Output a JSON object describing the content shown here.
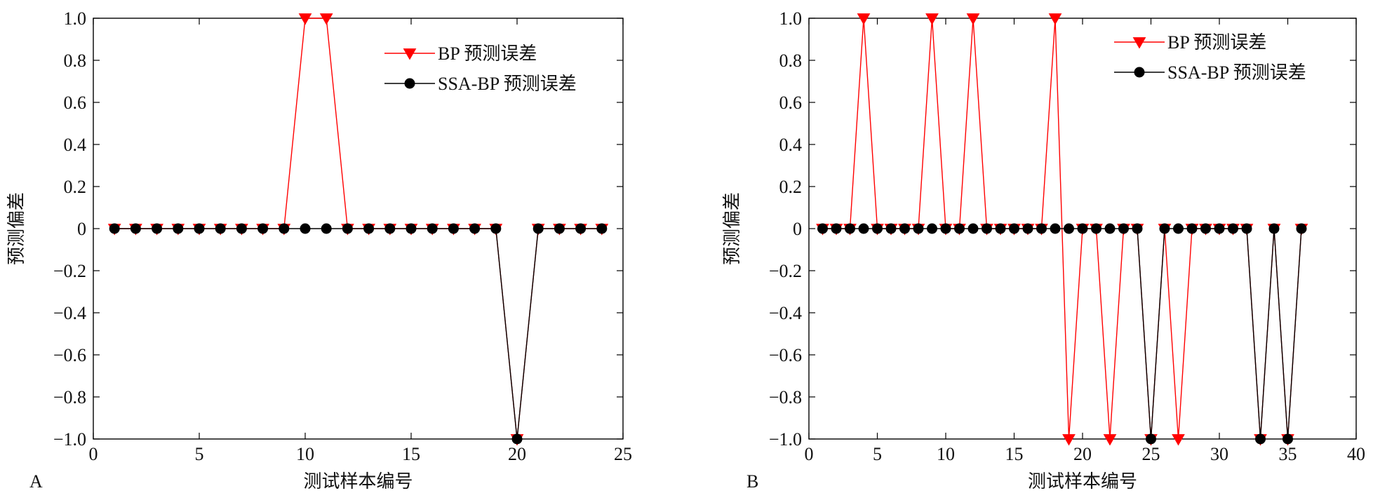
{
  "chart_data": [
    {
      "panel_label": "A",
      "type": "line",
      "xlabel": "测试样本编号",
      "ylabel": "预测偏差",
      "xlim": [
        0,
        25
      ],
      "ylim": [
        -1.0,
        1.0
      ],
      "x_ticks": [
        0,
        5,
        10,
        15,
        20,
        25
      ],
      "y_ticks": [
        -1.0,
        -0.8,
        -0.6,
        -0.4,
        -0.2,
        0,
        0.2,
        0.4,
        0.6,
        0.8,
        1.0
      ],
      "y_tick_labels": [
        "−1.0",
        "−0.8",
        "−0.6",
        "−0.4",
        "−0.2",
        "0",
        "0.2",
        "0.4",
        "0.6",
        "0.8",
        "1.0"
      ],
      "x_tick_labels": [
        "0",
        "5",
        "10",
        "15",
        "20",
        "25"
      ],
      "legend_position": "top-right",
      "grid": false,
      "series": [
        {
          "name": "BP 预测误差",
          "color": "#ff0000",
          "marker": "triangle-down",
          "x": [
            1,
            2,
            3,
            4,
            5,
            6,
            7,
            8,
            9,
            10,
            11,
            12,
            13,
            14,
            15,
            16,
            17,
            18,
            19,
            20,
            21,
            22,
            23,
            24
          ],
          "y": [
            0,
            0,
            0,
            0,
            0,
            0,
            0,
            0,
            0,
            1,
            1,
            0,
            0,
            0,
            0,
            0,
            0,
            0,
            0,
            -1,
            0,
            0,
            0,
            0
          ]
        },
        {
          "name": "SSA-BP 预测误差",
          "color": "#000000",
          "marker": "circle",
          "x": [
            1,
            2,
            3,
            4,
            5,
            6,
            7,
            8,
            9,
            10,
            11,
            12,
            13,
            14,
            15,
            16,
            17,
            18,
            19,
            20,
            21,
            22,
            23,
            24
          ],
          "y": [
            0,
            0,
            0,
            0,
            0,
            0,
            0,
            0,
            0,
            0,
            0,
            0,
            0,
            0,
            0,
            0,
            0,
            0,
            0,
            -1,
            0,
            0,
            0,
            0
          ]
        }
      ]
    },
    {
      "panel_label": "B",
      "type": "line",
      "xlabel": "测试样本编号",
      "ylabel": "预测偏差",
      "xlim": [
        0,
        40
      ],
      "ylim": [
        -1.0,
        1.0
      ],
      "x_ticks": [
        0,
        5,
        10,
        15,
        20,
        25,
        30,
        35,
        40
      ],
      "y_ticks": [
        -1.0,
        -0.8,
        -0.6,
        -0.4,
        -0.2,
        0,
        0.2,
        0.4,
        0.6,
        0.8,
        1.0
      ],
      "y_tick_labels": [
        "−1.0",
        "−0.8",
        "−0.6",
        "−0.4",
        "−0.2",
        "0",
        "0.2",
        "0.4",
        "0.6",
        "0.8",
        "1.0"
      ],
      "x_tick_labels": [
        "0",
        "5",
        "10",
        "15",
        "20",
        "25",
        "30",
        "35",
        "40"
      ],
      "legend_position": "top-right",
      "grid": false,
      "series": [
        {
          "name": "BP 预测误差",
          "color": "#ff0000",
          "marker": "triangle-down",
          "x": [
            1,
            2,
            3,
            4,
            5,
            6,
            7,
            8,
            9,
            10,
            11,
            12,
            13,
            14,
            15,
            16,
            17,
            18,
            19,
            20,
            21,
            22,
            23,
            24,
            25,
            26,
            27,
            28,
            29,
            30,
            31,
            32,
            33,
            34,
            35,
            36
          ],
          "y": [
            0,
            0,
            0,
            1,
            0,
            0,
            0,
            0,
            1,
            0,
            0,
            1,
            0,
            0,
            0,
            0,
            0,
            1,
            -1,
            0,
            0,
            -1,
            0,
            0,
            -1,
            0,
            -1,
            0,
            0,
            0,
            0,
            0,
            -1,
            0,
            -1,
            0
          ]
        },
        {
          "name": "SSA-BP 预测误差",
          "color": "#000000",
          "marker": "circle",
          "x": [
            1,
            2,
            3,
            4,
            5,
            6,
            7,
            8,
            9,
            10,
            11,
            12,
            13,
            14,
            15,
            16,
            17,
            18,
            19,
            20,
            21,
            22,
            23,
            24,
            25,
            26,
            27,
            28,
            29,
            30,
            31,
            32,
            33,
            34,
            35,
            36
          ],
          "y": [
            0,
            0,
            0,
            0,
            0,
            0,
            0,
            0,
            0,
            0,
            0,
            0,
            0,
            0,
            0,
            0,
            0,
            0,
            0,
            0,
            0,
            0,
            0,
            0,
            -1,
            0,
            0,
            0,
            0,
            0,
            0,
            0,
            -1,
            0,
            -1,
            0
          ]
        }
      ]
    }
  ]
}
